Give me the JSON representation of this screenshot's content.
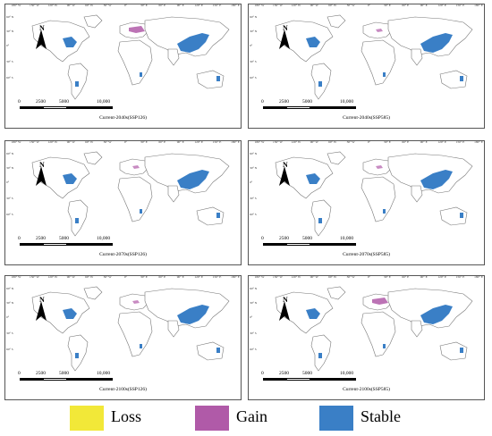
{
  "lon_labels": [
    "180° W",
    "150° W",
    "120° W",
    "90° W",
    "60° W",
    "30° W",
    "0°",
    "30° E",
    "60° E",
    "90° E",
    "120° E",
    "150° E",
    "180° E"
  ],
  "lat_labels": [
    "60° N",
    "30° N",
    "0°",
    "30° S",
    "60° S"
  ],
  "north_label": "N",
  "scale_labels": [
    "0",
    "2500",
    "5000",
    "10,000"
  ],
  "panels": [
    {
      "caption": "Current-2040s(SSP126)",
      "gain_level": "medium"
    },
    {
      "caption": "Current-2040s(SSP585)",
      "gain_level": "low"
    },
    {
      "caption": "Current-2070s(SSP126)",
      "gain_level": "low"
    },
    {
      "caption": "Current-2070s(SSP585)",
      "gain_level": "low"
    },
    {
      "caption": "Current-2100s(SSP126)",
      "gain_level": "low"
    },
    {
      "caption": "Current-2100s(SSP585)",
      "gain_level": "medium"
    }
  ],
  "legend": [
    {
      "label": "Loss",
      "color": "#f2e838"
    },
    {
      "label": "Gain",
      "color": "#b05aa8"
    },
    {
      "label": "Stable",
      "color": "#3a7fc6"
    }
  ]
}
